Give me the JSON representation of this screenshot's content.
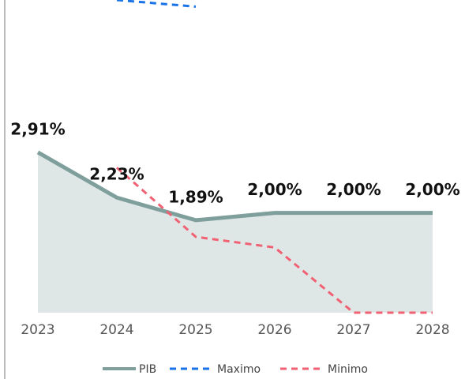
{
  "chart_data": {
    "type": "line",
    "categories": [
      "2023",
      "2024",
      "2025",
      "2026",
      "2027",
      "2028"
    ],
    "series": [
      {
        "name": "PIB",
        "color": "#7f9f9d",
        "values": [
          2.91,
          2.23,
          1.89,
          2.0,
          2.0,
          2.0
        ],
        "value_labels": [
          "2,91%",
          "2,23%",
          "1,89%",
          "2,00%",
          "2,00%",
          "2,00%"
        ],
        "area": true,
        "area_color": "#dfe7e6"
      },
      {
        "name": "Maximo",
        "color": "#1a73e8",
        "values": [
          null,
          5.2,
          5.1,
          null,
          null,
          null
        ],
        "dashed": true
      },
      {
        "name": "Minimo",
        "color": "#f06273",
        "values": [
          null,
          2.68,
          1.64,
          1.48,
          0.5,
          0.5
        ],
        "dashed": true
      }
    ],
    "ylim": [
      0.5,
      5.2
    ]
  }
}
